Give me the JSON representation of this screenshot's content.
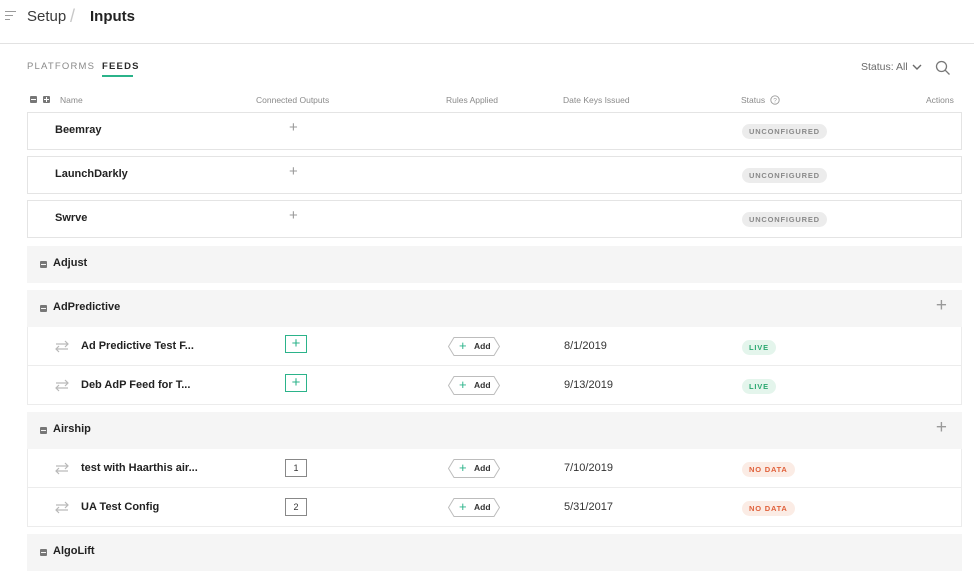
{
  "header": {
    "breadcrumb_parent": "Setup",
    "separator": "/",
    "title": "Inputs"
  },
  "tabs": [
    {
      "label": "PLATFORMS",
      "active": false
    },
    {
      "label": "FEEDS",
      "active": true
    }
  ],
  "filters": {
    "status_label": "Status: All"
  },
  "columns": {
    "name": "Name",
    "connected_outputs": "Connected Outputs",
    "rules_applied": "Rules Applied",
    "date_keys_issued": "Date Keys Issued",
    "status": "Status",
    "actions": "Actions"
  },
  "platform_cards": [
    {
      "name": "Beemray",
      "status": "UNCONFIGURED"
    },
    {
      "name": "LaunchDarkly",
      "status": "UNCONFIGURED"
    },
    {
      "name": "Swrve",
      "status": "UNCONFIGURED"
    }
  ],
  "groups": [
    {
      "name": "Adjust"
    },
    {
      "name": "AdPredictive",
      "rows": [
        {
          "name": "Ad Predictive Test F...",
          "outputs": "+",
          "add_label": "Add",
          "date": "8/1/2019",
          "status": "LIVE"
        },
        {
          "name": "Deb AdP Feed for T...",
          "outputs": "+",
          "add_label": "Add",
          "date": "9/13/2019",
          "status": "LIVE"
        }
      ]
    },
    {
      "name": "Airship",
      "rows": [
        {
          "name": "test with Haarthis air...",
          "outputs": "1",
          "add_label": "Add",
          "date": "7/10/2019",
          "status": "NO DATA"
        },
        {
          "name": "UA Test Config",
          "outputs": "2",
          "add_label": "Add",
          "date": "5/31/2017",
          "status": "NO DATA"
        }
      ]
    },
    {
      "name": "AlgoLift"
    }
  ],
  "colors": {
    "accent": "#2bb38a",
    "live": "#29a86f",
    "nodata": "#e0603a",
    "unconfigured": "#8a8a8a"
  },
  "icons": {
    "menu": "menu-icon",
    "search": "search-icon",
    "chevron": "chevron-down-icon",
    "info": "info-icon",
    "swap": "swap-arrows-icon",
    "plus": "plus-icon"
  }
}
